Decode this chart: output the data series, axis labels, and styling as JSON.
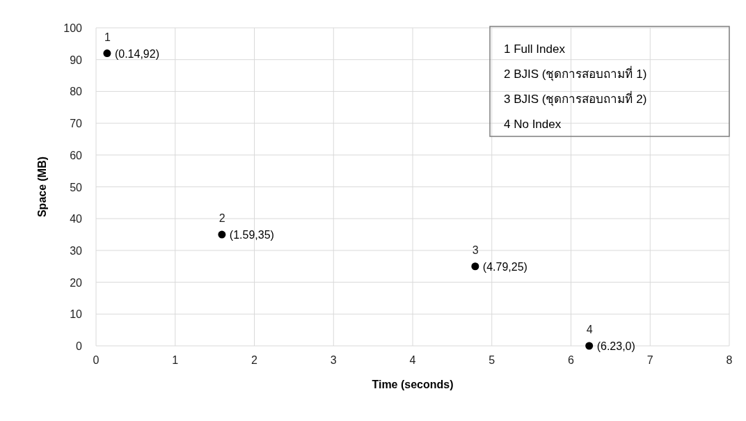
{
  "chart_data": {
    "type": "scatter",
    "xlabel": "Time (seconds)",
    "ylabel": "Space (MB)",
    "x": [
      0.14,
      1.59,
      4.79,
      6.23
    ],
    "values": [
      92,
      35,
      25,
      0
    ],
    "color": "#000000",
    "marker": "circle",
    "value_labels": [
      "(0.14,92)",
      "(1.59,35)",
      "(4.79,25)",
      "(6.23,0)"
    ],
    "xlim": [
      0,
      8
    ],
    "ylim": [
      0,
      100
    ],
    "xticks": [
      0,
      1,
      2,
      3,
      4,
      5,
      6,
      7,
      8
    ],
    "yticks": [
      0,
      10,
      20,
      30,
      40,
      50,
      60,
      70,
      80,
      90,
      100
    ],
    "grid": true,
    "annotations": [
      {
        "text": "1",
        "x": 0.14,
        "y": 92
      },
      {
        "text": "2",
        "x": 1.59,
        "y": 35
      },
      {
        "text": "3",
        "x": 4.79,
        "y": 25
      },
      {
        "text": "4",
        "x": 6.23,
        "y": 0
      },
      "1 Full Index",
      "2 BJIS (ชุดการสอบถามที่ 1)",
      "3 BJIS (ชุดการสอบถามที่ 2)",
      "4 No Index"
    ]
  }
}
